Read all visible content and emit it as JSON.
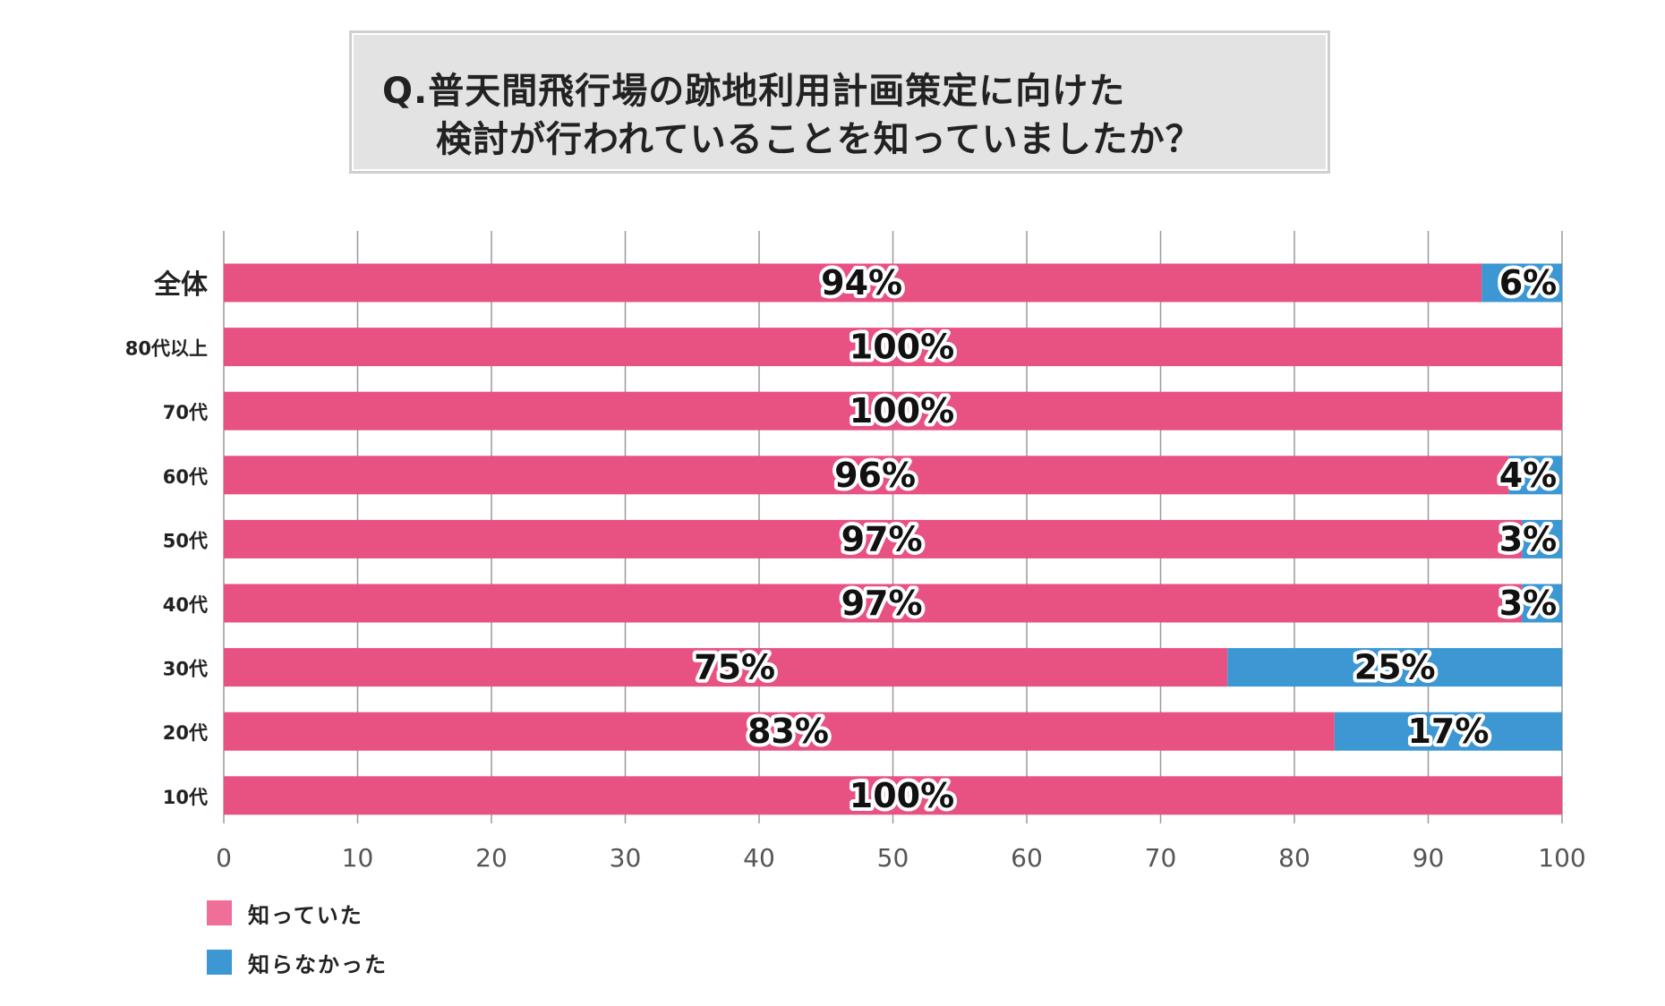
{
  "title": {
    "line1": "Q.普天間飛行場の跡地利用計画策定に向けた",
    "line2": "検討が行われていることを知っていましたか？"
  },
  "colors": {
    "known": "#e85282",
    "unknown": "#3c97d3"
  },
  "legend": [
    {
      "label": "知っていた",
      "color": "#e85282"
    },
    {
      "label": "知らなかった",
      "color": "#3c97d3"
    }
  ],
  "chart_data": {
    "type": "bar",
    "orientation": "horizontal",
    "stacked": true,
    "categories": [
      "全体",
      "80代以上",
      "70代",
      "60代",
      "50代",
      "40代",
      "30代",
      "20代",
      "10代"
    ],
    "series": [
      {
        "name": "知っていた",
        "values": [
          94,
          100,
          100,
          96,
          97,
          97,
          75,
          83,
          100
        ],
        "labels": [
          "94%",
          "100%",
          "100%",
          "96%",
          "97%",
          "97%",
          "75%",
          "83%",
          "100%"
        ]
      },
      {
        "name": "知らなかった",
        "values": [
          6,
          0,
          0,
          4,
          3,
          3,
          25,
          17,
          0
        ],
        "labels": [
          "6%",
          "",
          "",
          "4%",
          "3%",
          "3%",
          "25%",
          "17%",
          ""
        ]
      }
    ],
    "xlim": [
      0,
      100
    ],
    "xticks": [
      "0",
      "10",
      "20",
      "30",
      "40",
      "50",
      "60",
      "70",
      "80",
      "90",
      "100"
    ],
    "grid": true,
    "legend_position": "bottom-left"
  }
}
